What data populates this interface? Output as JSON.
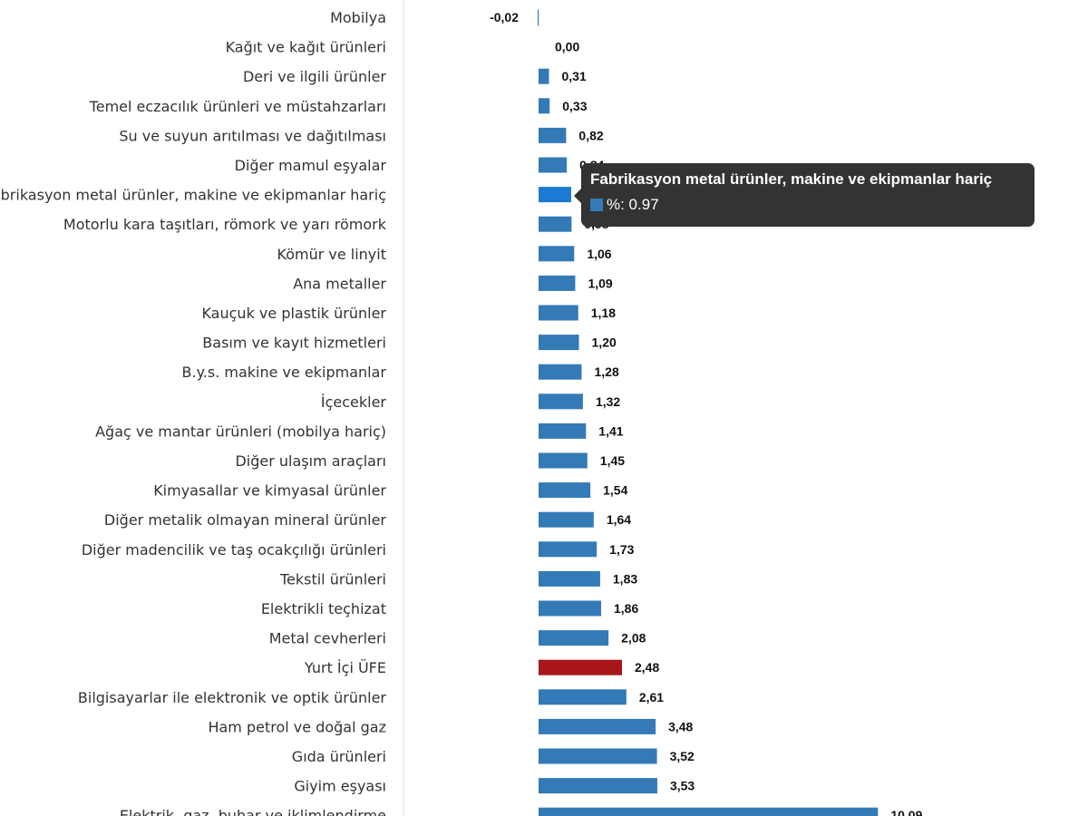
{
  "chart_data": {
    "type": "bar",
    "orientation": "horizontal",
    "categories": [
      "Mobilya",
      "Kağıt ve kağıt ürünleri",
      "Deri ve ilgili ürünler",
      "Temel eczacılık ürünleri ve müstahzarları",
      "Su ve suyun arıtılması ve dağıtılması",
      "Diğer mamul eşyalar",
      "Fabrikasyon metal ürünler, makine ve ekipmanlar hariç",
      "Motorlu kara taşıtları, römork ve yarı römork",
      "Kömür ve linyit",
      "Ana metaller",
      "Kauçuk ve plastik ürünler",
      "Basım ve kayıt hizmetleri",
      "B.y.s. makine ve ekipmanlar",
      "İçecekler",
      "Ağaç ve mantar ürünleri (mobilya hariç)",
      "Diğer ulaşım araçları",
      "Kimyasallar ve kimyasal ürünler",
      "Diğer metalik olmayan mineral ürünler",
      "Diğer madencilik ve taş ocakçılığı ürünleri",
      "Tekstil ürünleri",
      "Elektrikli teçhizat",
      "Metal cevherleri",
      "Yurt İçi ÜFE",
      "Bilgisayarlar ile elektronik ve optik ürünler",
      "Ham petrol ve doğal gaz",
      "Gıda ürünleri",
      "Giyim eşyası",
      "Elektrik, gaz, buhar ve iklimlendirme"
    ],
    "values": [
      -0.02,
      0.0,
      0.31,
      0.33,
      0.82,
      0.84,
      0.97,
      0.98,
      1.06,
      1.09,
      1.18,
      1.2,
      1.28,
      1.32,
      1.41,
      1.45,
      1.54,
      1.64,
      1.73,
      1.83,
      1.86,
      2.08,
      2.48,
      2.61,
      3.48,
      3.52,
      3.53,
      10.09
    ],
    "labels": [
      "-0,02",
      "0,00",
      "0,31",
      "0,33",
      "0,82",
      "0,84",
      "0,97",
      "0,98",
      "1,06",
      "1,09",
      "1,18",
      "1,20",
      "1,28",
      "1,32",
      "1,41",
      "1,45",
      "1,54",
      "1,64",
      "1,73",
      "1,83",
      "1,86",
      "2,08",
      "2,48",
      "2,61",
      "3,48",
      "3,52",
      "3,53",
      "10,09"
    ],
    "highlight_index": 22,
    "hover_index": 6,
    "colors": {
      "bar": "#337ab7",
      "highlight": "#a8161b",
      "hover": "#1a7ad4"
    },
    "title": "",
    "xlabel": "",
    "ylabel": "",
    "xlim": [
      0,
      10.09
    ]
  },
  "tooltip": {
    "title": "Fabrikasyon metal ürünler, makine ve ekipmanlar hariç",
    "series_label": "%: 0.97"
  }
}
